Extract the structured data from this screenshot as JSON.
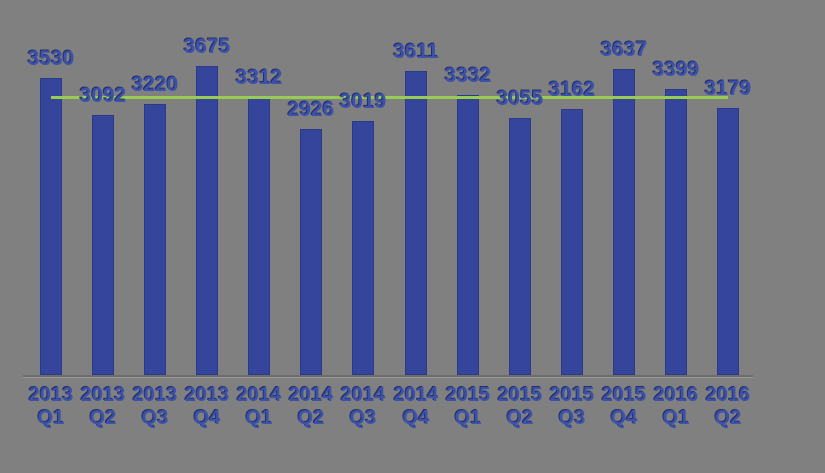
{
  "colors": {
    "background": "#808080",
    "bar": "#34459B",
    "bar_edge": "#2A3A88",
    "label_text": "#3B51AB",
    "label_shadow": "#232F66",
    "average_line": "#98CB52",
    "axis_line": "#6D6D6D"
  },
  "chart_data": {
    "type": "bar",
    "categories": [
      "2013 Q1",
      "2013 Q2",
      "2013 Q3",
      "2013 Q4",
      "2014 Q1",
      "2014 Q2",
      "2014 Q3",
      "2014 Q4",
      "2015 Q1",
      "2015 Q2",
      "2015 Q3",
      "2015 Q4",
      "2016 Q1",
      "2016 Q2"
    ],
    "values": [
      3530,
      3092,
      3220,
      3675,
      3312,
      2926,
      3019,
      3611,
      3332,
      3055,
      3162,
      3637,
      3399,
      3179
    ],
    "data_labels": true,
    "average_line": {
      "name": "average",
      "value": 3296
    },
    "ylim": [
      0,
      3675
    ],
    "xlabel": "",
    "ylabel": "",
    "grid": false,
    "legend": "none",
    "y_axis_labels": "none"
  }
}
